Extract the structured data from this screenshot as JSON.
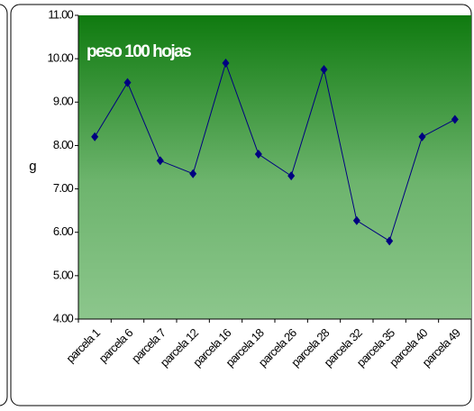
{
  "chart_data": {
    "type": "line",
    "title": "peso 100 hojas",
    "y_label": "g",
    "categories": [
      "parcela 1",
      "parcela 6",
      "parcela 7",
      "parcela 12",
      "parcela 16",
      "parcela 18",
      "parcela 26",
      "parcela 28",
      "parcela 32",
      "parcela 35",
      "parcela 40",
      "parcela 49"
    ],
    "values": [
      8.2,
      9.45,
      7.65,
      7.35,
      9.9,
      7.8,
      7.3,
      9.75,
      6.27,
      5.8,
      8.2,
      8.6
    ],
    "color": "#000080",
    "ylim": [
      4,
      11
    ],
    "yticks": [
      {
        "value": 4,
        "label": "4.00"
      },
      {
        "value": 5,
        "label": "5.00"
      },
      {
        "value": 6,
        "label": "6.00"
      },
      {
        "value": 7,
        "label": "7.00"
      },
      {
        "value": 8,
        "label": "8.00"
      },
      {
        "value": 9,
        "label": "9.00"
      },
      {
        "value": 10,
        "label": "10.00"
      },
      {
        "value": 11,
        "label": "11.00"
      }
    ],
    "grid": false
  }
}
